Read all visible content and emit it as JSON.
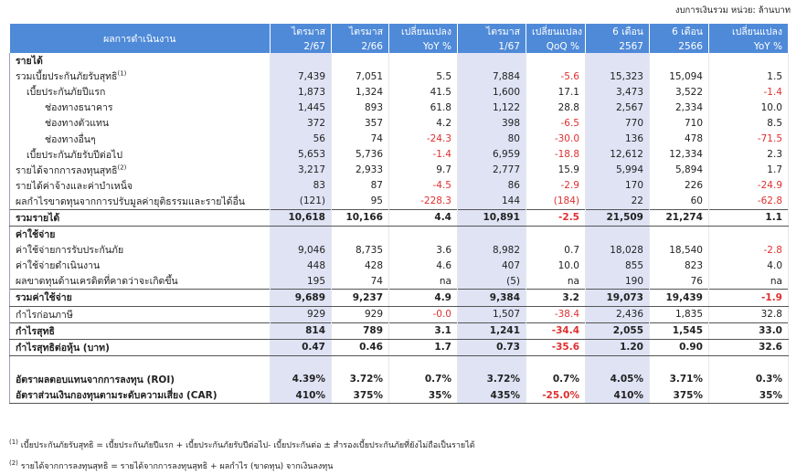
{
  "header": {
    "unit": "งบการเงินรวม  หน่วย: ล้านบาท"
  },
  "table": {
    "columns": [
      [
        "ผลการดำเนินงาน",
        ""
      ],
      [
        "ไตรมาส",
        "2/67"
      ],
      [
        "ไตรมาส",
        "2/66"
      ],
      [
        "เปลี่ยนแปลง",
        "YoY %"
      ],
      [
        "ไตรมาส",
        "1/67"
      ],
      [
        "เปลี่ยนแปลง",
        "QoQ %"
      ],
      [
        "6 เดือน",
        "2567"
      ],
      [
        "6 เดือน",
        "2566"
      ],
      [
        "เปลี่ยนแปลง",
        "YoY %"
      ]
    ],
    "rows": [
      {
        "label": "รายได้",
        "values": []
      },
      {
        "label": "รวมเบี้ยประกันภัยรับสุทธิ",
        "note": "(1)",
        "values": [
          "7,439",
          "7,051",
          "5.5",
          "7,884",
          "-5.6",
          "15,323",
          "15,094",
          "1.5"
        ]
      },
      {
        "label": "เบี้ยประกันภัยปีแรก",
        "values": [
          "1,873",
          "1,324",
          "41.5",
          "1,600",
          "17.1",
          "3,473",
          "3,522",
          "-1.4"
        ]
      },
      {
        "label": "ช่องทางธนาคาร",
        "values": [
          "1,445",
          "893",
          "61.8",
          "1,122",
          "28.8",
          "2,567",
          "2,334",
          "10.0"
        ]
      },
      {
        "label": "ช่องทางตัวแทน",
        "values": [
          "372",
          "357",
          "4.2",
          "398",
          "-6.5",
          "770",
          "710",
          "8.5"
        ]
      },
      {
        "label": "ช่องทางอื่นๆ",
        "values": [
          "56",
          "74",
          "-24.3",
          "80",
          "-30.0",
          "136",
          "478",
          "-71.5"
        ]
      },
      {
        "label": "เบี้ยประกันภัยรับปีต่อไป",
        "values": [
          "5,653",
          "5,736",
          "-1.4",
          "6,959",
          "-18.8",
          "12,612",
          "12,334",
          "2.3"
        ]
      },
      {
        "label": "รายได้จากการลงทุนสุทธิ",
        "note": "(2)",
        "values": [
          "3,217",
          "2,933",
          "9.7",
          "2,777",
          "15.9",
          "5,994",
          "5,894",
          "1.7"
        ]
      },
      {
        "label": "รายได้ค่าจ้างและค่าบำเหน็จ",
        "values": [
          "83",
          "87",
          "-4.5",
          "86",
          "-2.9",
          "170",
          "226",
          "-24.9"
        ]
      },
      {
        "label": "ผลกำไรขาดทุนจากการปรับมูลค่ายุติธรรมและรายได้อื่น",
        "values": [
          "(121)",
          "95",
          "-228.3",
          "144",
          "(184)",
          "22",
          "60",
          "-62.8"
        ]
      },
      {
        "label": "รวมรายได้",
        "values": [
          "10,618",
          "10,166",
          "4.4",
          "10,891",
          "-2.5",
          "21,509",
          "21,274",
          "1.1"
        ]
      },
      {
        "label": "ค่าใช้จ่าย",
        "values": []
      },
      {
        "label": "ค่าใช้จ่ายการรับประกันภัย",
        "values": [
          "9,046",
          "8,735",
          "3.6",
          "8,982",
          "0.7",
          "18,028",
          "18,540",
          "-2.8"
        ]
      },
      {
        "label": "ค่าใช้จ่ายดำเนินงาน",
        "values": [
          "448",
          "428",
          "4.6",
          "407",
          "10.0",
          "855",
          "823",
          "4.0"
        ]
      },
      {
        "label": "ผลขาดทุนด้านเครดิตที่คาดว่าจะเกิดขึ้น",
        "values": [
          "195",
          "74",
          "na",
          "(5)",
          "na",
          "190",
          "76",
          "na"
        ]
      },
      {
        "label": "รวมค่าใช้จ่าย",
        "values": [
          "9,689",
          "9,237",
          "4.9",
          "9,384",
          "3.2",
          "19,073",
          "19,439",
          "-1.9"
        ]
      },
      {
        "label": "กำไรก่อนภาษี",
        "values": [
          "929",
          "929",
          "-0.0",
          "1,507",
          "-38.4",
          "2,436",
          "1,835",
          "32.8"
        ]
      },
      {
        "label": "กำไรสุทธิ",
        "values": [
          "814",
          "789",
          "3.1",
          "1,241",
          "-34.4",
          "2,055",
          "1,545",
          "33.0"
        ]
      },
      {
        "label": "กำไรสุทธิต่อหุ้น (บาท)",
        "values": [
          "0.47",
          "0.46",
          "1.7",
          "0.73",
          "-35.6",
          "1.20",
          "0.90",
          "32.6"
        ]
      },
      {
        "label": null,
        "values": []
      },
      {
        "label": "อัตราผลตอบแทนจากการลงทุน (ROI)",
        "values": [
          "4.39%",
          "3.72%",
          "0.7%",
          "3.72%",
          "0.7%",
          "4.05%",
          "3.71%",
          "0.3%"
        ]
      },
      {
        "label": "อัตราส่วนเงินกองทุนตามระดับความเสี่ยง (CAR)",
        "values": [
          "410%",
          "375%",
          "35%",
          "435%",
          "-25.0%",
          "410%",
          "375%",
          "35%"
        ]
      }
    ]
  },
  "footnotes": [
    {
      "mark": "(1)",
      "text": "เบี้ยประกันภัยรับสุทธิ = เบี้ยประกันภัยปีแรก + เบี้ยประกันภัยรับปีต่อไป- เบี้ยประกันต่อ ± สำรองเบี้ยประกันภัยที่ยังไม่ถือเป็นรายได้"
    },
    {
      "mark": "(2)",
      "text": "รายได้จากการลงทุนสุทธิ = รายได้จากการลงทุนสุทธิ + ผลกำไร (ขาดทุน) จากเงินลงทุน"
    }
  ]
}
